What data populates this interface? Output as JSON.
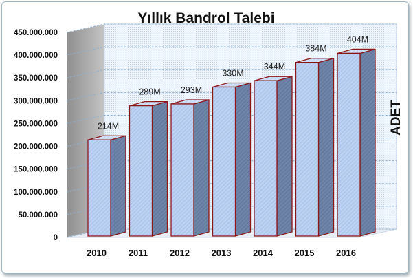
{
  "chart_data": {
    "type": "bar",
    "title": "Yıllık Bandrol Talebi",
    "ylabel": "ADET",
    "xlabel": "",
    "categories": [
      "2010",
      "2011",
      "2012",
      "2013",
      "2014",
      "2015",
      "2016"
    ],
    "values": [
      214000000,
      289000000,
      293000000,
      330000000,
      344000000,
      384000000,
      404000000
    ],
    "data_labels": [
      "214M",
      "289M",
      "293M",
      "330M",
      "344M",
      "384M",
      "404M"
    ],
    "ylim": [
      0,
      450000000
    ],
    "yticks": [
      "0",
      "50.000.000",
      "100.000.000",
      "150.000.000",
      "200.000.000",
      "250.000.000",
      "300.000.000",
      "350.000.000",
      "400.000.000",
      "450.000.000"
    ],
    "grid": true,
    "style": "3d",
    "colors": {
      "bar_front": "#b8cff0",
      "bar_top": "#c9daf3",
      "bar_side": "#6f84a6",
      "bar_edge": "#8b1a1a",
      "wall": "#dce8f6",
      "left_wall": "#a9a9a9",
      "grid": "#8fb0cf"
    }
  }
}
